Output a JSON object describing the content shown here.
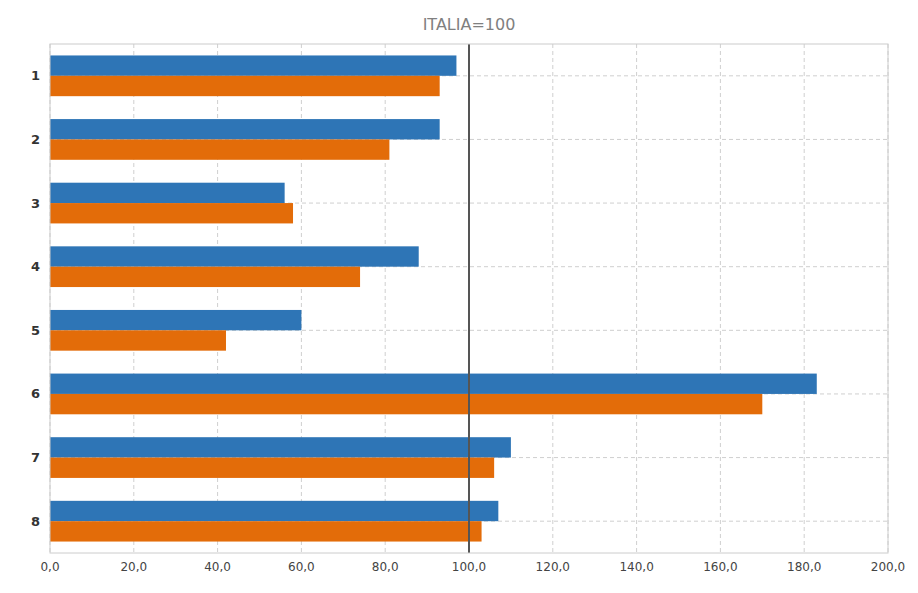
{
  "chart_data": {
    "type": "bar",
    "orientation": "horizontal",
    "title": "ITALIA=100",
    "categories": [
      "1",
      "2",
      "3",
      "4",
      "5",
      "6",
      "7",
      "8"
    ],
    "series": [
      {
        "color": "#2E75B6",
        "values": [
          97,
          93,
          56,
          88,
          60,
          183,
          110,
          107
        ]
      },
      {
        "color": "#E36C09",
        "values": [
          93,
          81,
          58,
          74,
          42,
          170,
          106,
          103
        ]
      }
    ],
    "xlim": [
      0,
      200
    ],
    "xticks": [
      {
        "value": 0,
        "label": "0,0"
      },
      {
        "value": 20,
        "label": "20,0"
      },
      {
        "value": 40,
        "label": "40,0"
      },
      {
        "value": 60,
        "label": "60,0"
      },
      {
        "value": 80,
        "label": "80,0"
      },
      {
        "value": 100,
        "label": "100,0"
      },
      {
        "value": 120,
        "label": "120,0"
      },
      {
        "value": 140,
        "label": "140,0"
      },
      {
        "value": 160,
        "label": "160,0"
      },
      {
        "value": 180,
        "label": "180,0"
      },
      {
        "value": 200,
        "label": "200,0"
      }
    ],
    "reference_line": 100,
    "grid": true
  }
}
